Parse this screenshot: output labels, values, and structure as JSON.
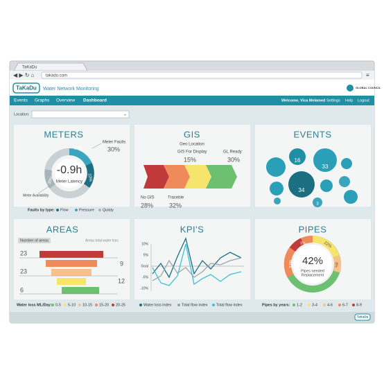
{
  "browser": {
    "tab": "TaKaDu",
    "url": "takadu.com"
  },
  "header": {
    "logo": "TaKaDu",
    "title": "Water Network Monitoring",
    "partner": "GLOBAL COUNCIL"
  },
  "nav": {
    "items": [
      "Events",
      "Graphs",
      "Overview",
      "Dashboard"
    ],
    "welcome": "Welcome, Vica Melamed",
    "links": [
      "Settings",
      "Help",
      "Logout"
    ]
  },
  "location": {
    "label": "Location:"
  },
  "meters": {
    "title": "METERS",
    "value": "-0.9h",
    "value_label": "Meter Latency",
    "faults_label": "Meter Faults",
    "faults": "30%",
    "seg_a": "20%",
    "seg_b": "10%",
    "seg_c": "30%",
    "availability": "Meter Availability",
    "legend_title": "Faults by type:",
    "legend": [
      "Flow",
      "Pressure",
      "Qulaty"
    ]
  },
  "gis": {
    "title": "GIS",
    "subtitle": "Geo Location",
    "display_label": "GIS For Display",
    "display": "15%",
    "ready_label": "GL Ready",
    "ready": "30%",
    "none_label": "No GIS",
    "none": "28%",
    "trace_label": "Traceble",
    "trace": "32%"
  },
  "events": {
    "title": "EVENTS",
    "counts": [
      "16",
      "33",
      "34",
      "3"
    ]
  },
  "areas": {
    "title": "AREAS",
    "count_label": "Number of areas",
    "loss_label": "Areas total water loss",
    "numbers": [
      "23",
      "9",
      "23",
      "12",
      "6"
    ],
    "legend_title": "Water loss ML/Day:",
    "legend": [
      "0-5",
      "5-10",
      "10-15",
      "15-20",
      "20-25"
    ]
  },
  "kpis": {
    "title": "KPI'S",
    "yticks": [
      "10%",
      "5%",
      "Goal",
      "-5%",
      "-10%"
    ],
    "legend": [
      "Water loss index",
      "Total flow index",
      "Total flow index"
    ]
  },
  "pipes": {
    "title": "PIPES",
    "value": "42%",
    "value_label": [
      "Pipes needed",
      "Replacement"
    ],
    "segments": [
      "33%",
      "22%",
      "8%",
      "5%"
    ],
    "legend_title": "Pipes by years:",
    "legend": [
      "1-2",
      "3-4",
      "4-6",
      "6-7",
      "8-9"
    ]
  },
  "footer": {
    "logo": "TaKaDu"
  }
}
